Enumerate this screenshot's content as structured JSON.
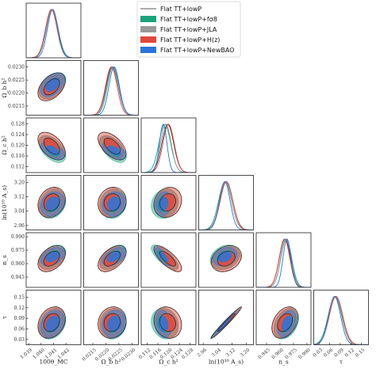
{
  "chart_data": {
    "type": "triangle",
    "parameters": [
      {
        "key": "theta",
        "label": "100θ_MC",
        "range": [
          1.0388,
          1.0432
        ],
        "ticks": [
          "1.039",
          "1.040",
          "1.041",
          "1.042"
        ],
        "tick_values": [
          1.039,
          1.04,
          1.041,
          1.042
        ]
      },
      {
        "key": "omegab",
        "label": "Ω_b h²",
        "range": [
          0.02115,
          0.02325
        ],
        "ticks": [
          "0.0215",
          "0.0220",
          "0.0225",
          "0.0230"
        ],
        "tick_values": [
          0.0215,
          0.022,
          0.0225,
          0.023
        ]
      },
      {
        "key": "omegac",
        "label": "Ω_c h²",
        "range": [
          0.1098,
          0.1302
        ],
        "ticks": [
          "0.112",
          "0.116",
          "0.120",
          "0.124",
          "0.128"
        ],
        "tick_values": [
          0.112,
          0.116,
          0.12,
          0.124,
          0.128
        ]
      },
      {
        "key": "logA",
        "label": "ln(10¹⁰ A_s)",
        "range": [
          2.935,
          3.24
        ],
        "ticks": [
          "2.96",
          "3.04",
          "3.12",
          "3.20"
        ],
        "tick_values": [
          2.96,
          3.04,
          3.12,
          3.2
        ]
      },
      {
        "key": "ns",
        "label": "n_s",
        "range": [
          0.9335,
          0.9945
        ],
        "ticks": [
          "0.945",
          "0.960",
          "0.975",
          "0.990"
        ],
        "tick_values": [
          0.945,
          0.96,
          0.975,
          0.99
        ]
      },
      {
        "key": "tau",
        "label": "τ",
        "range": [
          0.015,
          0.17
        ],
        "ticks": [
          "0.03",
          "0.06",
          "0.09",
          "0.12",
          "0.15"
        ],
        "tick_values": [
          0.03,
          0.06,
          0.09,
          0.12,
          0.15
        ]
      }
    ],
    "series": [
      {
        "name": "Flat TT+lowP",
        "color": "#222222",
        "style": "line",
        "mean": [
          1.04085,
          0.02224,
          0.1197,
          3.089,
          0.9655,
          0.078
        ],
        "sigma": [
          0.00047,
          0.00023,
          0.0022,
          0.036,
          0.0062,
          0.019
        ]
      },
      {
        "name": "Flat TT+lowP+fσ8",
        "color": "#1aa37a",
        "style": "filled",
        "mean": [
          1.0409,
          0.02228,
          0.1186,
          3.082,
          0.967,
          0.075
        ],
        "sigma": [
          0.00047,
          0.00022,
          0.0022,
          0.036,
          0.006,
          0.019
        ]
      },
      {
        "name": "Flat TT+lowP+JLA",
        "color": "#9a9a9a",
        "style": "filled",
        "mean": [
          1.04088,
          0.02226,
          0.119,
          3.085,
          0.9665,
          0.077
        ],
        "sigma": [
          0.00045,
          0.00022,
          0.002,
          0.034,
          0.0058,
          0.018
        ]
      },
      {
        "name": "Flat TT+lowP+H(z)",
        "color": "#e0463c",
        "style": "filled",
        "mean": [
          1.04082,
          0.02221,
          0.12,
          3.09,
          0.965,
          0.078
        ],
        "sigma": [
          0.00046,
          0.00022,
          0.0021,
          0.035,
          0.0059,
          0.019
        ]
      },
      {
        "name": "Flat TT+lowP+NewBAO",
        "color": "#2a74d8",
        "style": "filled",
        "mean": [
          1.04093,
          0.02232,
          0.118,
          3.08,
          0.9678,
          0.074
        ],
        "sigma": [
          0.00042,
          0.0002,
          0.0014,
          0.03,
          0.0045,
          0.017
        ]
      }
    ],
    "correlations": {
      "1-0": 0.45,
      "2-0": -0.5,
      "2-1": -0.55,
      "3-0": 0.2,
      "3-1": 0.1,
      "3-2": 0.15,
      "4-0": 0.4,
      "4-1": 0.5,
      "4-2": -0.75,
      "4-3": 0.25,
      "5-0": 0.25,
      "5-1": 0.1,
      "5-2": -0.15,
      "5-3": 0.98,
      "5-4": 0.35
    },
    "legend_placement": "top-right",
    "grid": false
  }
}
